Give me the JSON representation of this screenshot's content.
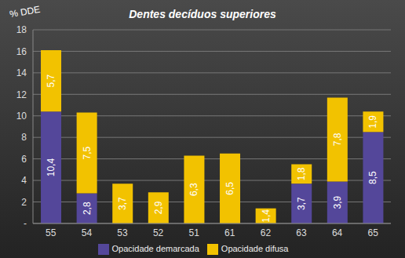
{
  "chart_data": {
    "type": "bar",
    "title": "Dentes decíduos superiores",
    "y_label": "% DDE",
    "categories": [
      "55",
      "54",
      "53",
      "52",
      "51",
      "61",
      "62",
      "63",
      "64",
      "65"
    ],
    "series": [
      {
        "name": "Opacidade demarcada",
        "color": "#54479a",
        "values": [
          10.4,
          2.8,
          null,
          null,
          null,
          null,
          null,
          3.7,
          3.9,
          8.5
        ],
        "value_labels": [
          "10,4",
          "2,8",
          null,
          null,
          null,
          null,
          null,
          "3,7",
          "3,9",
          "8,5"
        ]
      },
      {
        "name": "Opacidade difusa",
        "color": "#f2c200",
        "values": [
          5.7,
          7.5,
          3.7,
          2.9,
          6.3,
          6.5,
          1.4,
          1.8,
          7.8,
          1.9
        ],
        "value_labels": [
          "5,7",
          "7,5",
          "3,7",
          "2,9",
          "6,3",
          "6,5",
          "1,4",
          "1,8",
          "7,8",
          "1,9"
        ]
      }
    ],
    "stacked": true,
    "data_labels": true,
    "ylim": [
      0,
      18
    ],
    "yticks": [
      {
        "value": 0,
        "label": "-"
      },
      2,
      4,
      6,
      8,
      10,
      12,
      14,
      16,
      18
    ],
    "grid": true,
    "legend": "bottom"
  }
}
